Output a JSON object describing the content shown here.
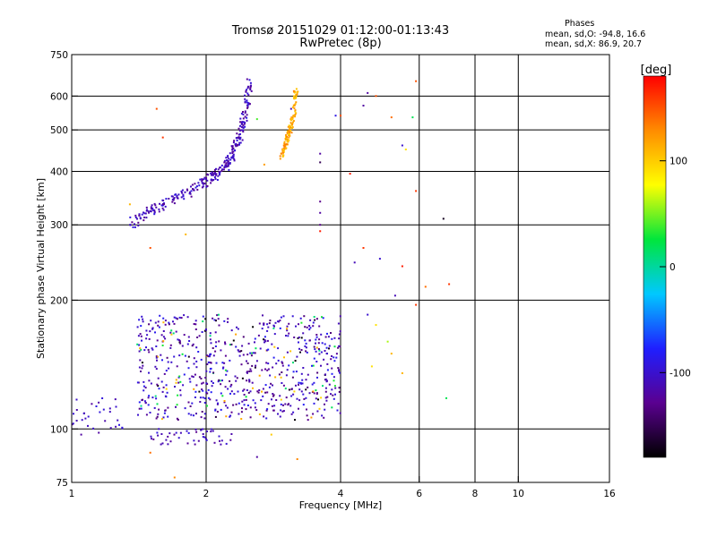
{
  "header": {
    "title_line1": "Tromsø 20151029 01:12:00-01:13:43",
    "title_line2": "RwPretec (8p)"
  },
  "phase_stats": {
    "heading": "Phases",
    "line_o": "mean, sd,O: -94.8, 16.6",
    "line_x": "mean, sd,X:  86.9, 20.7"
  },
  "colorbar": {
    "label": "[deg]",
    "tick_labels": [
      "100",
      "0",
      "-100"
    ],
    "tick_values": [
      100,
      0,
      -100
    ],
    "range": [
      -180,
      180
    ],
    "colors": [
      "#000000",
      "#5a0090",
      "#1f1fff",
      "#00c8ff",
      "#00e63c",
      "#ffff00",
      "#ff8c00",
      "#ff0000"
    ]
  },
  "chart_data": {
    "type": "scatter",
    "xlabel": "Frequency [MHz]",
    "ylabel": "Stationary phase Virtual Height [km]",
    "x_scale": "log",
    "y_scale": "log",
    "xlim": [
      1,
      16
    ],
    "ylim": [
      75,
      750
    ],
    "x_ticks": [
      1,
      2,
      4,
      6,
      8,
      10,
      16
    ],
    "x_tick_labels": [
      "1",
      "2",
      "4",
      "6",
      "8",
      "10",
      "16"
    ],
    "y_ticks": [
      75,
      100,
      200,
      300,
      400,
      500,
      600,
      750
    ],
    "y_tick_labels": [
      "75",
      "100",
      "200",
      "300",
      "400",
      "500",
      "600",
      "750"
    ],
    "x_gridlines": [
      2,
      4,
      6,
      8,
      10
    ],
    "y_gridlines": [
      100,
      200,
      300,
      400,
      500,
      600
    ],
    "grid": true,
    "traces": [
      {
        "f": [
          1.35,
          1.5,
          1.7,
          1.9,
          2.05,
          2.2,
          2.3,
          2.38,
          2.45,
          2.5
        ],
        "h": [
          300,
          325,
          345,
          365,
          385,
          410,
          440,
          480,
          560,
          640
        ],
        "phase": -110,
        "density": 8,
        "spread": 0.06
      },
      {
        "f": [
          2.95,
          3.0,
          3.05,
          3.1,
          3.15,
          3.18
        ],
        "h": [
          430,
          455,
          480,
          510,
          560,
          620
        ],
        "phase": 115,
        "density": 6,
        "spread": 0.04
      }
    ],
    "clusters": [
      {
        "fmin": 1.4,
        "fmax": 4.0,
        "hmin": 105,
        "hmax": 185,
        "count": 700,
        "phase_range": [
          -140,
          -80
        ],
        "phase_mix": [
          -115,
          110,
          20,
          -170
        ]
      },
      {
        "fmin": 1.0,
        "fmax": 1.3,
        "hmin": 100,
        "hmax": 118,
        "count": 30,
        "phase_range": [
          -120,
          -90
        ],
        "phase_mix": [
          -110
        ]
      },
      {
        "fmin": 1.5,
        "fmax": 2.3,
        "hmin": 92,
        "hmax": 100,
        "count": 45,
        "phase_range": [
          -130,
          -90
        ],
        "phase_mix": [
          -110
        ]
      }
    ],
    "scatter_points": [
      {
        "f": 1.55,
        "h": 560,
        "phase": 150
      },
      {
        "f": 1.6,
        "h": 480,
        "phase": 160
      },
      {
        "f": 2.6,
        "h": 530,
        "phase": 40
      },
      {
        "f": 2.7,
        "h": 415,
        "phase": 120
      },
      {
        "f": 3.1,
        "h": 560,
        "phase": -110
      },
      {
        "f": 3.6,
        "h": 440,
        "phase": -120
      },
      {
        "f": 3.6,
        "h": 420,
        "phase": -150
      },
      {
        "f": 4.0,
        "h": 540,
        "phase": 150
      },
      {
        "f": 4.2,
        "h": 395,
        "phase": 170
      },
      {
        "f": 4.6,
        "h": 610,
        "phase": -120
      },
      {
        "f": 4.8,
        "h": 600,
        "phase": 150
      },
      {
        "f": 5.2,
        "h": 535,
        "phase": 140
      },
      {
        "f": 5.5,
        "h": 460,
        "phase": -100
      },
      {
        "f": 5.6,
        "h": 450,
        "phase": 90
      },
      {
        "f": 5.8,
        "h": 535,
        "phase": 20
      },
      {
        "f": 5.9,
        "h": 650,
        "phase": 150
      },
      {
        "f": 5.9,
        "h": 360,
        "phase": 160
      },
      {
        "f": 3.6,
        "h": 340,
        "phase": -130
      },
      {
        "f": 3.6,
        "h": 320,
        "phase": -120
      },
      {
        "f": 3.6,
        "h": 300,
        "phase": -130
      },
      {
        "f": 3.6,
        "h": 290,
        "phase": 170
      },
      {
        "f": 6.8,
        "h": 310,
        "phase": -170
      },
      {
        "f": 7.0,
        "h": 218,
        "phase": 160
      },
      {
        "f": 4.5,
        "h": 265,
        "phase": 160
      },
      {
        "f": 4.3,
        "h": 245,
        "phase": -110
      },
      {
        "f": 4.9,
        "h": 250,
        "phase": -100
      },
      {
        "f": 5.5,
        "h": 240,
        "phase": 170
      },
      {
        "f": 5.3,
        "h": 205,
        "phase": -110
      },
      {
        "f": 5.9,
        "h": 195,
        "phase": 160
      },
      {
        "f": 6.2,
        "h": 215,
        "phase": 140
      },
      {
        "f": 4.6,
        "h": 185,
        "phase": -100
      },
      {
        "f": 4.8,
        "h": 175,
        "phase": 90
      },
      {
        "f": 5.1,
        "h": 160,
        "phase": 60
      },
      {
        "f": 5.2,
        "h": 150,
        "phase": 110
      },
      {
        "f": 4.7,
        "h": 140,
        "phase": 90
      },
      {
        "f": 5.5,
        "h": 135,
        "phase": 110
      },
      {
        "f": 6.9,
        "h": 118,
        "phase": 20
      },
      {
        "f": 2.8,
        "h": 97,
        "phase": 100
      },
      {
        "f": 3.2,
        "h": 85,
        "phase": 130
      },
      {
        "f": 2.6,
        "h": 86,
        "phase": -120
      },
      {
        "f": 1.5,
        "h": 88,
        "phase": 140
      },
      {
        "f": 1.7,
        "h": 77,
        "phase": 130
      },
      {
        "f": 1.15,
        "h": 98,
        "phase": -120
      },
      {
        "f": 1.05,
        "h": 97,
        "phase": -120
      },
      {
        "f": 1.5,
        "h": 265,
        "phase": 150
      },
      {
        "f": 1.35,
        "h": 335,
        "phase": 110
      },
      {
        "f": 1.8,
        "h": 285,
        "phase": 110
      },
      {
        "f": 2.3,
        "h": 430,
        "phase": -100
      },
      {
        "f": 3.9,
        "h": 540,
        "phase": -90
      },
      {
        "f": 4.5,
        "h": 570,
        "phase": -120
      }
    ]
  }
}
